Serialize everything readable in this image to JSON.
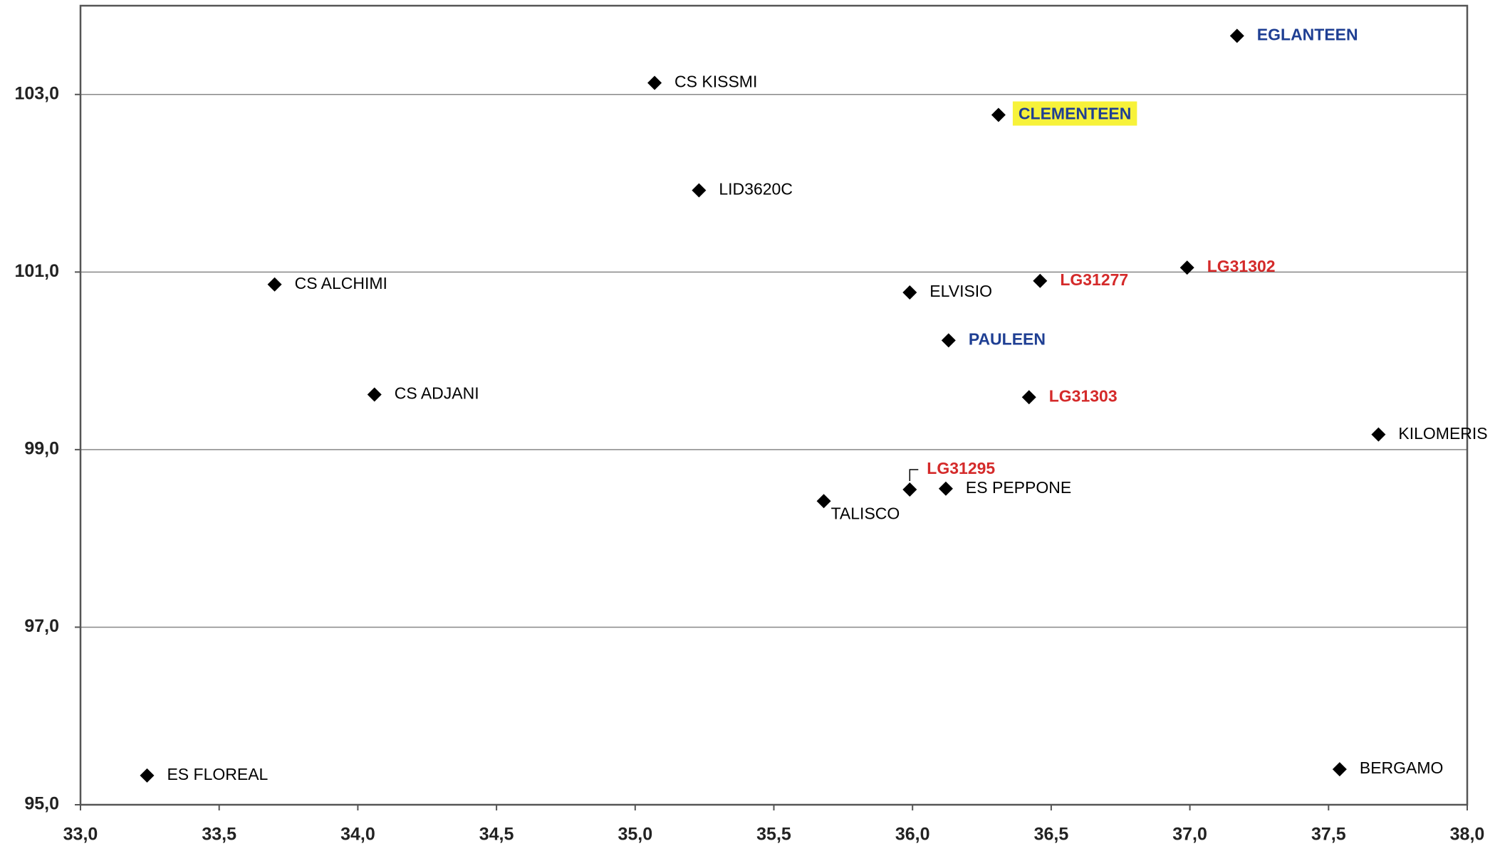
{
  "chart_data": {
    "type": "scatter",
    "x": [
      33.24,
      33.7,
      34.06,
      35.07,
      35.23,
      35.68,
      35.99,
      36.12,
      35.99,
      36.13,
      36.31,
      36.46,
      36.42,
      36.99,
      37.17,
      37.68,
      37.54
    ],
    "y": [
      95.33,
      100.86,
      99.62,
      103.13,
      101.92,
      98.42,
      98.55,
      98.56,
      100.77,
      100.23,
      102.77,
      100.9,
      99.59,
      101.05,
      103.66,
      99.17,
      95.4
    ],
    "labels": [
      "ES FLOREAL",
      "CS ALCHIMI",
      "CS ADJANI",
      "CS KISSMI",
      "LID3620C",
      "TALISCO",
      "LG31295",
      "ES PEPPONE",
      "ELVISIO",
      "PAULEEN",
      "CLEMENTEEN",
      "LG31277",
      "LG31303",
      "LG31302",
      "EGLANTEEN",
      "KILOMERIS",
      "BERGAMO"
    ],
    "label_colors": [
      "#000000",
      "#000000",
      "#000000",
      "#000000",
      "#000000",
      "#000000",
      "#d42a2a",
      "#000000",
      "#000000",
      "#1f3f93",
      "#1f3f93",
      "#d42a2a",
      "#d42a2a",
      "#d42a2a",
      "#1f3f93",
      "#000000",
      "#000000"
    ],
    "highlight": {
      "index": 10,
      "color": "#f7f23a"
    },
    "marker_color": "#000000",
    "xlim": [
      33,
      38
    ],
    "ylim": [
      95,
      104
    ],
    "xticks": [
      {
        "value": 33,
        "label": "33,0"
      },
      {
        "value": 33.5,
        "label": "33,5"
      },
      {
        "value": 34,
        "label": "34,0"
      },
      {
        "value": 34.5,
        "label": "34,5"
      },
      {
        "value": 35,
        "label": "35,0"
      },
      {
        "value": 35.5,
        "label": "35,5"
      },
      {
        "value": 36,
        "label": "36,0"
      },
      {
        "value": 36.5,
        "label": "36,5"
      },
      {
        "value": 37,
        "label": "37,0"
      },
      {
        "value": 37.5,
        "label": "37,5"
      },
      {
        "value": 38,
        "label": "38,0"
      }
    ],
    "yticks": [
      {
        "value": 95,
        "label": "95,0"
      },
      {
        "value": 97,
        "label": "97,0"
      },
      {
        "value": 99,
        "label": "99,0"
      },
      {
        "value": 101,
        "label": "101,0"
      },
      {
        "value": 103,
        "label": "103,0"
      }
    ],
    "grid": true
  }
}
